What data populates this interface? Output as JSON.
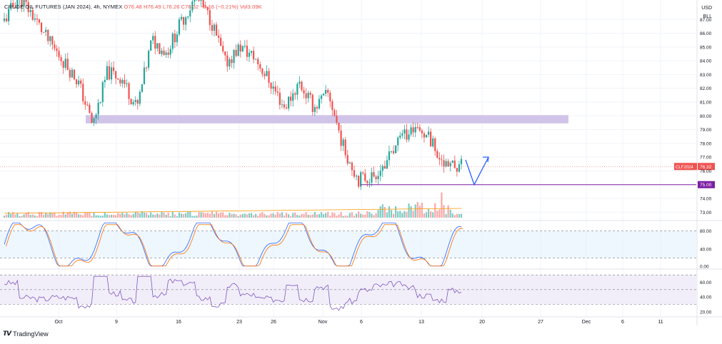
{
  "legend": {
    "symbol": "CRUDE OIL FUTURES (JAN 2024)",
    "interval": "4h",
    "exchange": "NYMEX",
    "open": "O76.48",
    "high": "H76.49",
    "low": "L76.26",
    "close": "C76.32",
    "change": "−0.16 (−0.21%)",
    "volume": "Vol3.09K"
  },
  "currency": "USD",
  "unit": "BLL",
  "brand": "TradingView",
  "colors": {
    "up": "#26a69a",
    "down": "#ef5350",
    "zone": "#d1c4e9",
    "support": "#7b1fa2",
    "arrow": "#2962ff",
    "stoch_k": "#2962ff",
    "stoch_d": "#ff6d00",
    "rsi": "#7e57c2",
    "price_tag": "#ef5350"
  },
  "chart_data": {
    "type": "candlestick",
    "price_axis": {
      "ticks": [
        "87.00",
        "86.00",
        "85.00",
        "84.00",
        "83.00",
        "82.00",
        "81.00",
        "80.00",
        "79.00",
        "78.00",
        "77.00",
        "76.00",
        "74.00",
        "73.00"
      ],
      "range": [
        72.6,
        88.0
      ]
    },
    "time_axis": {
      "labels": [
        "Oct",
        "9",
        "16",
        "23",
        "26",
        "Nov",
        "6",
        "13",
        "20",
        "27",
        "Dec",
        "6",
        "11"
      ]
    },
    "resistance_zone": [
      79.45,
      80.05
    ],
    "support_level": {
      "value": 75.0,
      "label": "75.00"
    },
    "last_price": {
      "value": 76.32,
      "symbol_label": "CLF2024",
      "label": "76.32"
    },
    "swing_points": [
      {
        "date": "Sep 27",
        "close": 86.9
      },
      {
        "date": "Sep 28",
        "close": 88.7
      },
      {
        "date": "Oct 2",
        "close": 87.2
      },
      {
        "date": "Oct 4",
        "close": 85.4
      },
      {
        "date": "Oct 5",
        "close": 84.0
      },
      {
        "date": "Oct 6",
        "close": 82.5
      },
      {
        "date": "Oct 9",
        "close": 79.3
      },
      {
        "date": "Oct 10",
        "close": 83.2
      },
      {
        "date": "Oct 12",
        "close": 82.7
      },
      {
        "date": "Oct 13",
        "close": 80.5
      },
      {
        "date": "Oct 16",
        "close": 85.5
      },
      {
        "date": "Oct 18",
        "close": 84.6
      },
      {
        "date": "Oct 19",
        "close": 86.8
      },
      {
        "date": "Oct 20",
        "close": 88.6
      },
      {
        "date": "Oct 23",
        "close": 87.0
      },
      {
        "date": "Oct 25",
        "close": 83.8
      },
      {
        "date": "Oct 26",
        "close": 85.0
      },
      {
        "date": "Oct 27",
        "close": 84.2
      },
      {
        "date": "Oct 30",
        "close": 82.5
      },
      {
        "date": "Nov 1",
        "close": 80.6
      },
      {
        "date": "Nov 2",
        "close": 82.4
      },
      {
        "date": "Nov 3",
        "close": 80.6
      },
      {
        "date": "Nov 6",
        "close": 81.6
      },
      {
        "date": "Nov 7",
        "close": 77.7
      },
      {
        "date": "Nov 8",
        "close": 75.4
      },
      {
        "date": "Nov 9",
        "close": 75.6
      },
      {
        "date": "Nov 10",
        "close": 76.8
      },
      {
        "date": "Nov 13",
        "close": 78.4
      },
      {
        "date": "Nov 14",
        "close": 79.2
      },
      {
        "date": "Nov 15",
        "close": 78.2
      },
      {
        "date": "Nov 16",
        "close": 76.2
      },
      {
        "date": "Nov 17",
        "close": 76.32
      }
    ],
    "projection": {
      "down_to": 75.0,
      "then_up_to": 77.0
    },
    "stochastic": {
      "levels": [
        "80.00",
        "40.00",
        "0.00"
      ],
      "range": [
        0,
        100
      ]
    },
    "rsi": {
      "levels": [
        "60.00",
        "40.00",
        "20.00"
      ],
      "range": [
        15,
        75
      ]
    }
  }
}
